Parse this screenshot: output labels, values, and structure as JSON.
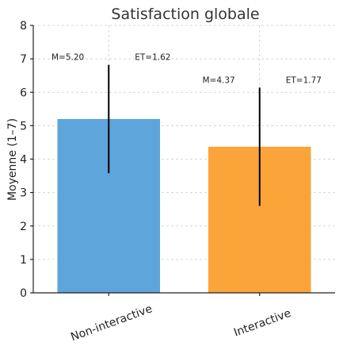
{
  "chart_data": {
    "type": "bar",
    "title": "Satisfaction globale",
    "xlabel": "",
    "ylabel": "Moyenne (1–7)",
    "ylim": [
      0,
      8
    ],
    "yticks": [
      0,
      1,
      2,
      3,
      4,
      5,
      6,
      7,
      8
    ],
    "categories": [
      "Non-interactive",
      "Interactive"
    ],
    "values": [
      5.2,
      4.37
    ],
    "errors": [
      1.62,
      1.77
    ],
    "colors": [
      "#5DA5DA",
      "#FAA43A"
    ],
    "annotations": [
      {
        "mean_label": "M=5.20",
        "sd_label": "ET=1.62"
      },
      {
        "mean_label": "M=4.37",
        "sd_label": "ET=1.77"
      }
    ],
    "grid": true,
    "xtick_rotation_deg": 20
  }
}
